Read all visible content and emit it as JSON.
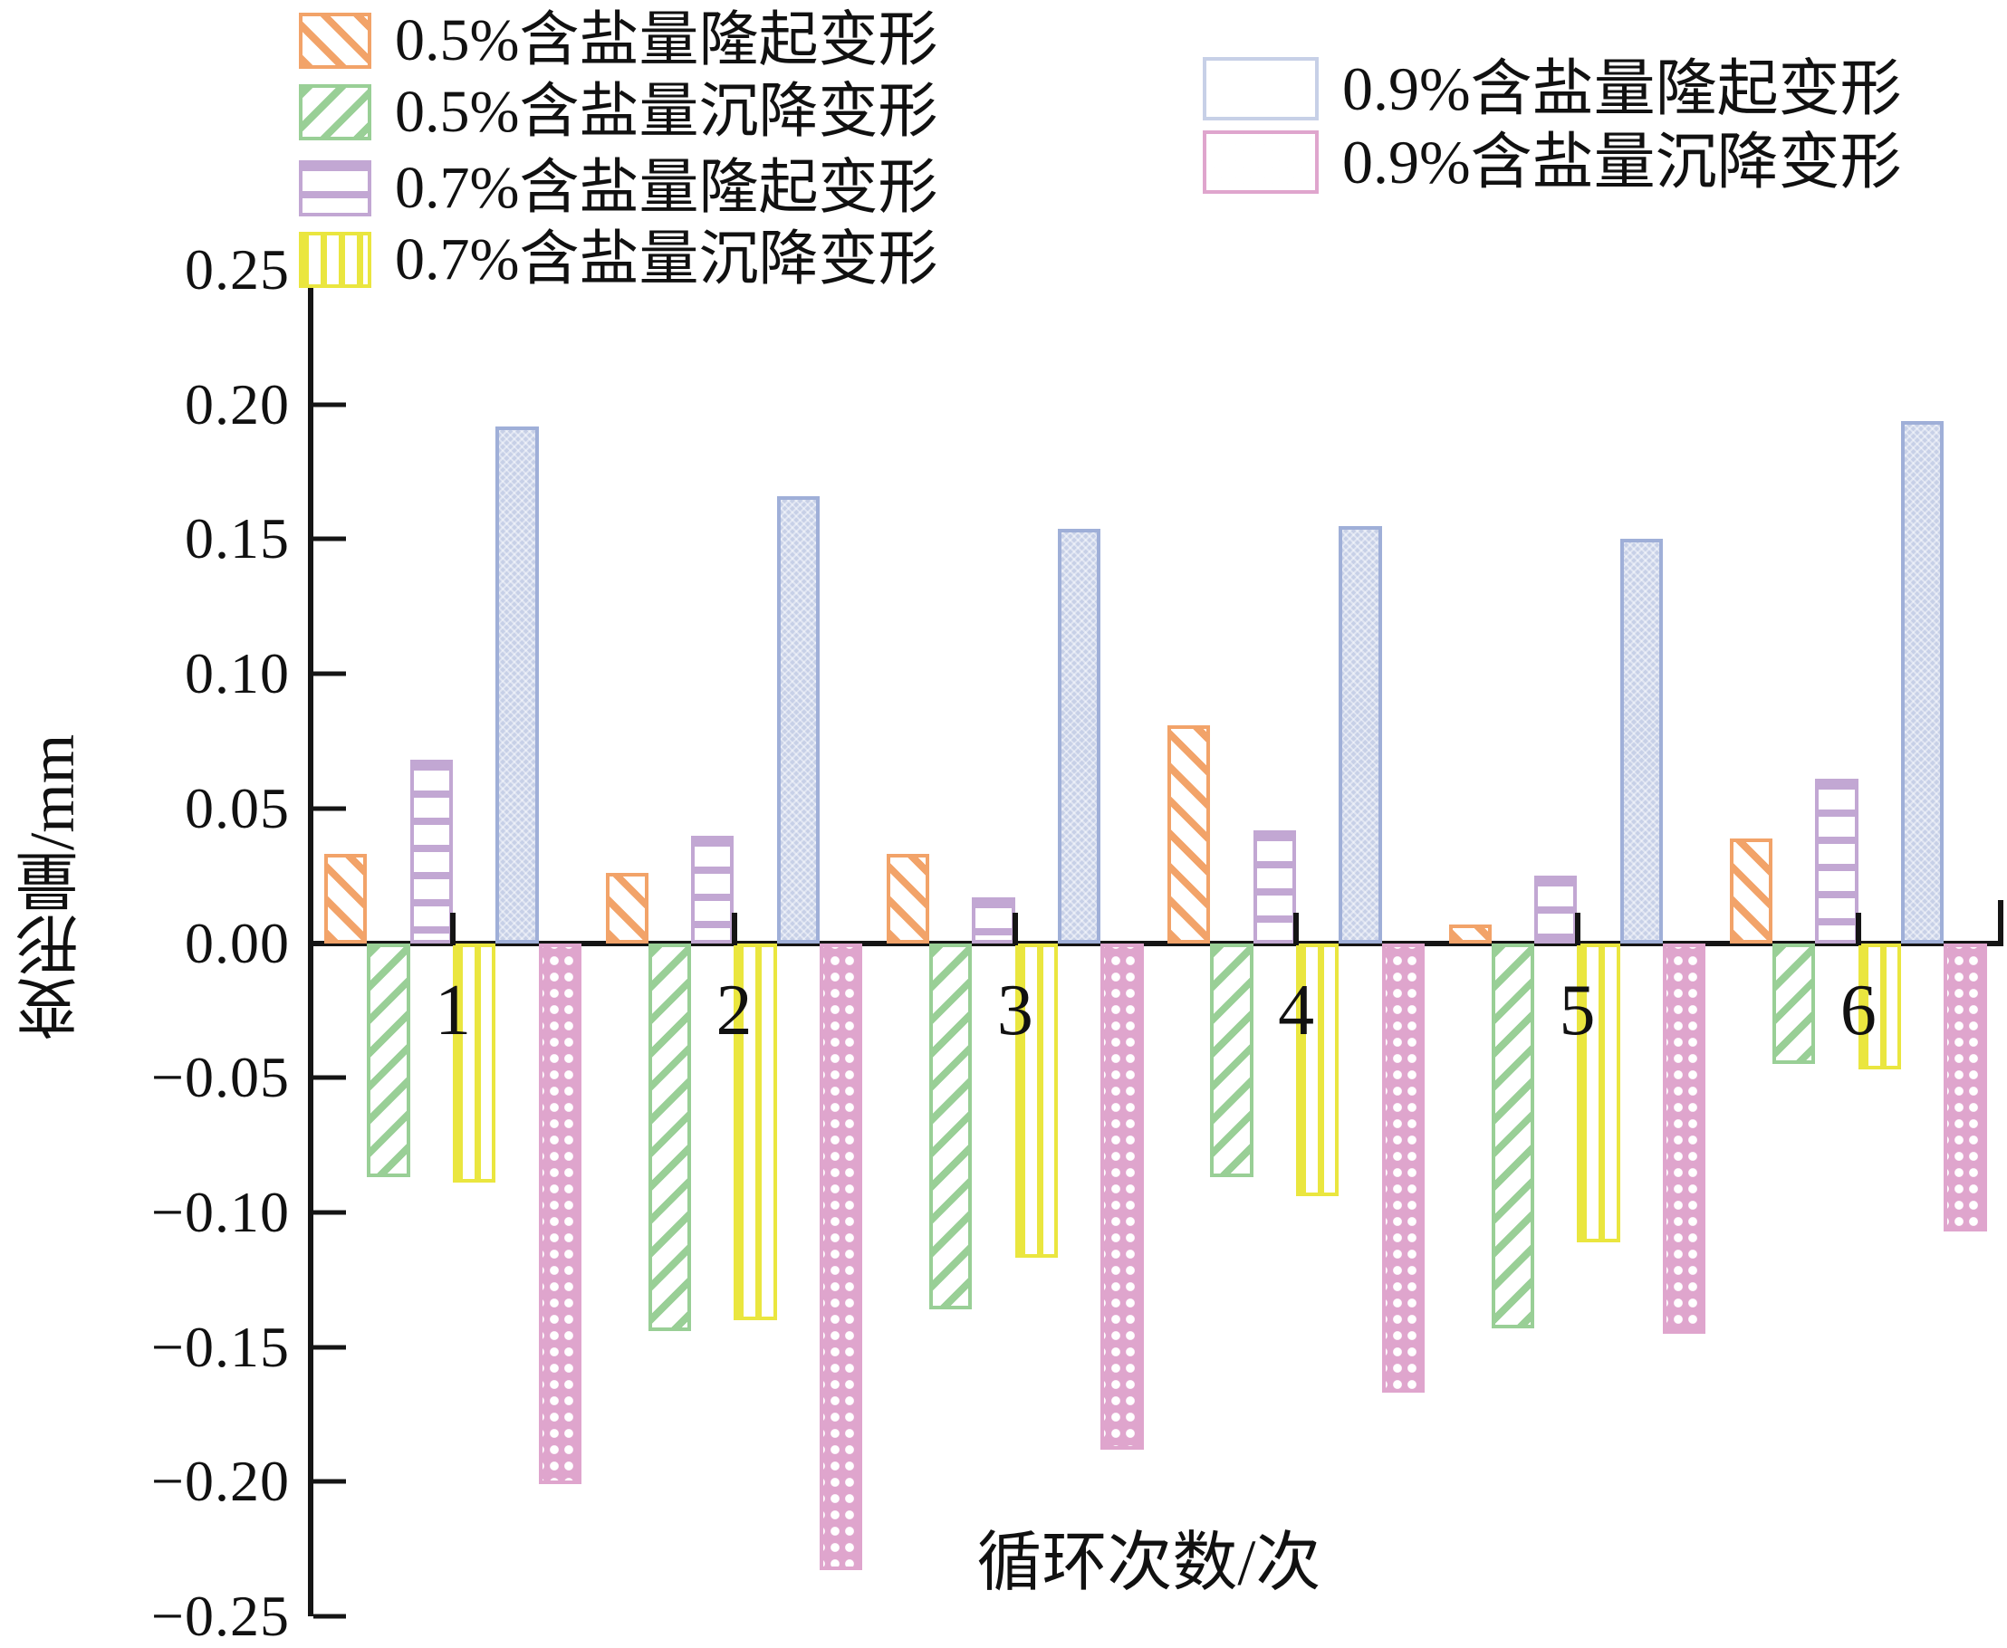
{
  "chart_data": {
    "type": "bar",
    "title": "",
    "xlabel": "循环次数/次",
    "ylabel": "变形量/mm",
    "categories": [
      "1",
      "2",
      "3",
      "4",
      "5",
      "6"
    ],
    "ylim": [
      -0.25,
      0.25
    ],
    "y_ticks": [
      {
        "label": "0.25",
        "value": 0.25
      },
      {
        "label": "0.20",
        "value": 0.2
      },
      {
        "label": "0.15",
        "value": 0.15
      },
      {
        "label": "0.10",
        "value": 0.1
      },
      {
        "label": "0.05",
        "value": 0.05
      },
      {
        "label": "0.00",
        "value": 0.0
      },
      {
        "label": "−0.05",
        "value": -0.05
      },
      {
        "label": "−0.10",
        "value": -0.1
      },
      {
        "label": "−0.15",
        "value": -0.15
      },
      {
        "label": "−0.20",
        "value": -0.2
      },
      {
        "label": "−0.25",
        "value": -0.25
      }
    ],
    "grid": false,
    "legend_position": "top",
    "series": [
      {
        "name": "0.5%含盐量隆起变形",
        "pattern": "diag-down",
        "color": "#F2A369",
        "values": [
          0.033,
          0.026,
          0.033,
          0.081,
          0.007,
          0.039
        ]
      },
      {
        "name": "0.5%含盐量沉降变形",
        "pattern": "diag-up",
        "color": "#99CF96",
        "values": [
          -0.087,
          -0.144,
          -0.136,
          -0.087,
          -0.143,
          -0.045
        ]
      },
      {
        "name": "0.7%含盐量隆起变形",
        "pattern": "horiz",
        "color": "#C2A7D3",
        "values": [
          0.068,
          0.04,
          0.017,
          0.042,
          0.025,
          0.061
        ]
      },
      {
        "name": "0.7%含盐量沉降变形",
        "pattern": "vert",
        "color": "#EAE63F",
        "values": [
          -0.089,
          -0.14,
          -0.117,
          -0.094,
          -0.111,
          -0.047
        ]
      },
      {
        "name": "0.9%含盐量隆起变形",
        "pattern": "solid",
        "color": "#C7D0E7",
        "border": "#9FAFD8",
        "values": [
          0.192,
          0.166,
          0.154,
          0.155,
          0.15,
          0.194
        ]
      },
      {
        "name": "0.9%含盐量沉降变形",
        "pattern": "dots",
        "color": "#DFA5CD",
        "values": [
          -0.201,
          -0.233,
          -0.188,
          -0.167,
          -0.145,
          -0.107
        ]
      }
    ],
    "axis_color": "#151515"
  },
  "legend": {
    "left_entries": [
      0,
      1,
      2,
      3
    ],
    "right_entries": [
      4,
      5
    ]
  }
}
